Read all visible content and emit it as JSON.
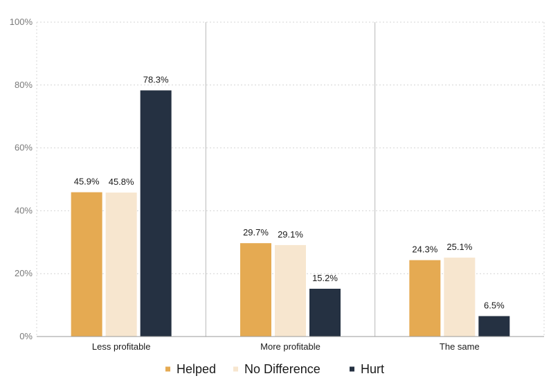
{
  "chart_data": {
    "type": "bar",
    "title": "",
    "xlabel": "",
    "ylabel": "",
    "ylim": [
      0,
      100
    ],
    "yticks": [
      "0%",
      "20%",
      "40%",
      "60%",
      "80%",
      "100%"
    ],
    "ytick_values": [
      0,
      20,
      40,
      60,
      80,
      100
    ],
    "categories": [
      "Less profitable",
      "More profitable",
      "The same"
    ],
    "series": [
      {
        "name": "Helped",
        "color": "#e5aa52",
        "values": [
          45.9,
          29.7,
          24.3
        ],
        "labels": [
          "45.9%",
          "29.7%",
          "24.3%"
        ]
      },
      {
        "name": "No Difference",
        "color": "#f7e6cf",
        "values": [
          45.8,
          29.1,
          25.1
        ],
        "labels": [
          "45.8%",
          "29.1%",
          "25.1%"
        ]
      },
      {
        "name": "Hurt",
        "color": "#253142",
        "values": [
          78.3,
          15.2,
          6.5
        ],
        "labels": [
          "78.3%",
          "15.2%",
          "6.5%"
        ]
      }
    ],
    "grid": true,
    "legend_position": "bottom"
  }
}
